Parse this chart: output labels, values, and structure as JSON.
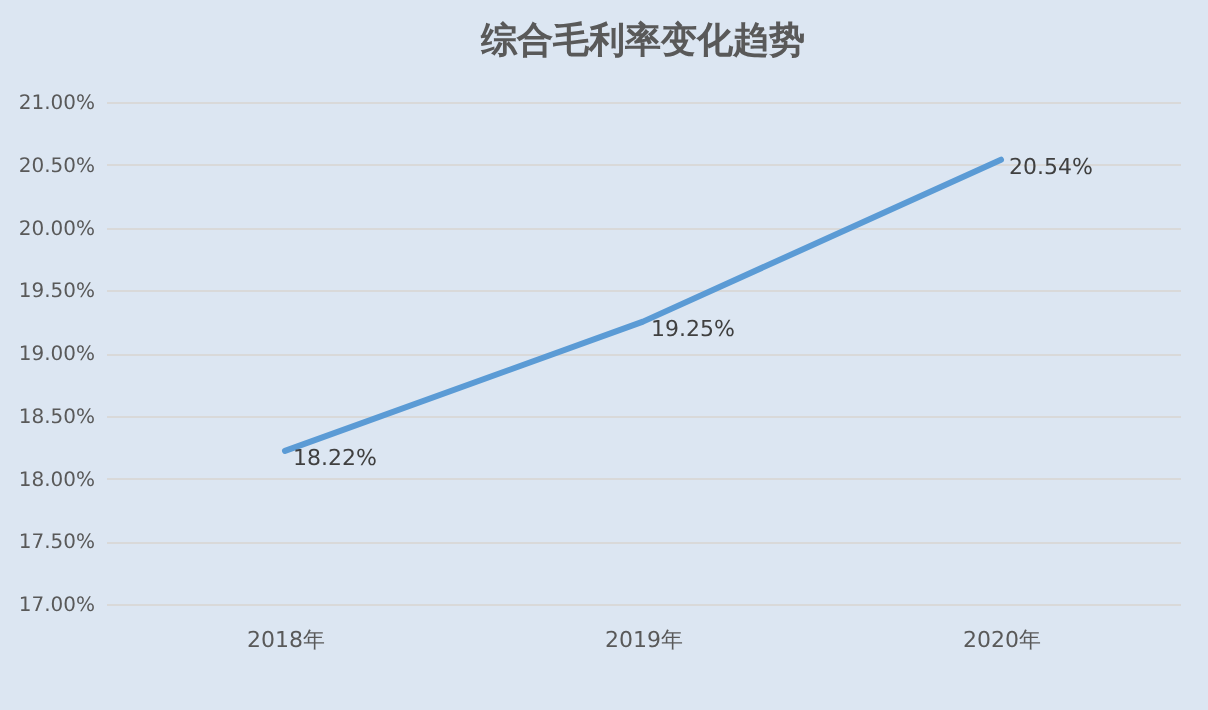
{
  "chart_data": {
    "type": "line",
    "title": "综合毛利率变化趋势",
    "categories": [
      "2018年",
      "2019年",
      "2020年"
    ],
    "series": [
      {
        "color": "#5b9bd5",
        "values": [
          18.22,
          19.25,
          20.54
        ],
        "value_labels": [
          "18.22%",
          "19.25%",
          "20.54%"
        ]
      }
    ],
    "ylim": [
      17,
      21
    ],
    "yticks": [
      {
        "value": 17,
        "label": "17.00%"
      },
      {
        "value": 17.5,
        "label": "17.50%"
      },
      {
        "value": 18,
        "label": "18.00%"
      },
      {
        "value": 18.5,
        "label": "18.50%"
      },
      {
        "value": 19,
        "label": "19.00%"
      },
      {
        "value": 19.5,
        "label": "19.50%"
      },
      {
        "value": 20,
        "label": "20.00%"
      },
      {
        "value": 20.5,
        "label": "20.50%"
      },
      {
        "value": 21,
        "label": "21.00%"
      }
    ],
    "grid": "y",
    "marker": "none",
    "line_style": "solid"
  }
}
